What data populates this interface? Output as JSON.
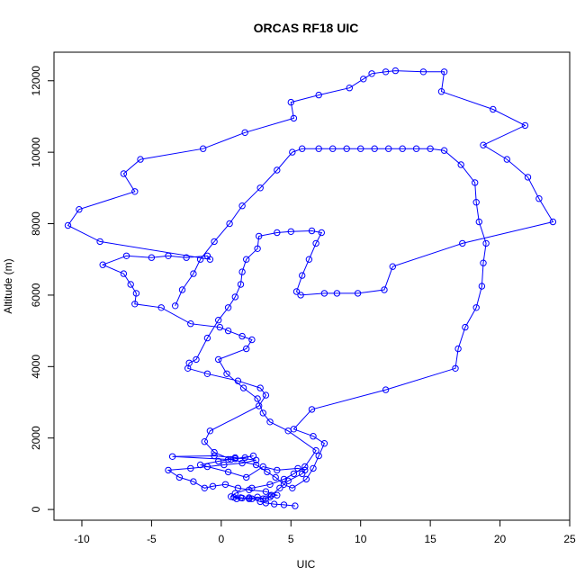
{
  "chart_data": {
    "type": "line",
    "title": "ORCAS RF18 UIC",
    "xlabel": "UIC",
    "ylabel": "Altitude (m)",
    "xlim": [
      -12,
      25
    ],
    "ylim": [
      -300,
      12800
    ],
    "xticks": [
      -10,
      -5,
      0,
      5,
      10,
      15,
      20,
      25
    ],
    "yticks": [
      0,
      2000,
      4000,
      6000,
      8000,
      10000,
      12000
    ],
    "grid": false,
    "legend": "none",
    "line_style": "line with open circle markers",
    "color": "#0000ff",
    "series": [
      {
        "points": [
          [
            5.3,
            100
          ],
          [
            4.5,
            130
          ],
          [
            3.8,
            150
          ],
          [
            3.2,
            180
          ],
          [
            2.8,
            220
          ],
          [
            2.2,
            300
          ],
          [
            1.5,
            320
          ],
          [
            0.9,
            340
          ],
          [
            1.1,
            300
          ],
          [
            2.0,
            330
          ],
          [
            3.0,
            300
          ],
          [
            3.5,
            350
          ],
          [
            4.0,
            400
          ],
          [
            3.2,
            500
          ],
          [
            2.0,
            550
          ],
          [
            1.2,
            600
          ],
          [
            0.3,
            700
          ],
          [
            -0.6,
            650
          ],
          [
            -1.2,
            600
          ],
          [
            -2.0,
            780
          ],
          [
            -3.0,
            900
          ],
          [
            -3.8,
            1100
          ],
          [
            -2.2,
            1150
          ],
          [
            -1.0,
            1200
          ],
          [
            0.2,
            1250
          ],
          [
            1.5,
            1300
          ],
          [
            2.5,
            1380
          ],
          [
            1.0,
            1450
          ],
          [
            -0.5,
            1500
          ],
          [
            -3.5,
            1480
          ],
          [
            0.5,
            1400
          ],
          [
            1.7,
            1450
          ],
          [
            2.3,
            1500
          ],
          [
            1.0,
            1420
          ],
          [
            -0.2,
            1350
          ],
          [
            -1.5,
            1250
          ],
          [
            0.5,
            1050
          ],
          [
            1.8,
            900
          ],
          [
            3.0,
            1200
          ],
          [
            4.0,
            1100
          ],
          [
            5.5,
            1150
          ],
          [
            6.0,
            1100
          ],
          [
            5.8,
            1000
          ],
          [
            4.8,
            800
          ],
          [
            4.2,
            600
          ],
          [
            3.6,
            400
          ],
          [
            3.2,
            300
          ],
          [
            2.6,
            350
          ],
          [
            2.0,
            300
          ],
          [
            1.4,
            330
          ],
          [
            0.7,
            360
          ],
          [
            1.0,
            450
          ],
          [
            2.2,
            600
          ],
          [
            3.5,
            700
          ],
          [
            4.5,
            850
          ],
          [
            5.2,
            1000
          ],
          [
            6.0,
            1200
          ],
          [
            6.8,
            1650
          ],
          [
            4.8,
            2200
          ],
          [
            3.5,
            2450
          ],
          [
            3.0,
            2700
          ],
          [
            2.6,
            3100
          ],
          [
            1.6,
            3400
          ],
          [
            0.4,
            3800
          ],
          [
            -0.2,
            4200
          ],
          [
            1.8,
            4500
          ],
          [
            2.2,
            4750
          ],
          [
            1.5,
            4850
          ],
          [
            0.5,
            5000
          ],
          [
            -0.1,
            5100
          ],
          [
            -2.2,
            5200
          ],
          [
            -4.3,
            5650
          ],
          [
            -6.2,
            5750
          ],
          [
            -6.1,
            6050
          ],
          [
            -6.5,
            6300
          ],
          [
            -7.0,
            6600
          ],
          [
            -8.5,
            6850
          ],
          [
            -6.8,
            7100
          ],
          [
            -5.0,
            7050
          ],
          [
            -3.8,
            7100
          ],
          [
            -2.5,
            7050
          ],
          [
            -1.0,
            7100
          ],
          [
            -0.8,
            7000
          ],
          [
            -8.7,
            7500
          ],
          [
            -11.0,
            7950
          ],
          [
            -10.2,
            8400
          ],
          [
            -6.2,
            8900
          ],
          [
            -7.0,
            9400
          ],
          [
            -5.8,
            9800
          ],
          [
            -1.3,
            10100
          ],
          [
            1.7,
            10550
          ],
          [
            5.2,
            10950
          ],
          [
            5.0,
            11400
          ],
          [
            7.0,
            11600
          ],
          [
            9.2,
            11800
          ],
          [
            10.2,
            12050
          ],
          [
            10.8,
            12200
          ],
          [
            11.8,
            12250
          ],
          [
            12.5,
            12280
          ],
          [
            14.5,
            12250
          ],
          [
            16.0,
            12250
          ],
          [
            15.8,
            11700
          ],
          [
            19.5,
            11200
          ],
          [
            21.8,
            10750
          ],
          [
            18.8,
            10200
          ],
          [
            20.5,
            9800
          ],
          [
            22.0,
            9300
          ],
          [
            22.8,
            8700
          ],
          [
            23.8,
            8050
          ],
          [
            17.3,
            7450
          ],
          [
            12.3,
            6800
          ],
          [
            11.7,
            6150
          ],
          [
            9.8,
            6050
          ],
          [
            8.3,
            6050
          ],
          [
            7.4,
            6050
          ],
          [
            5.7,
            6000
          ],
          [
            5.4,
            6100
          ],
          [
            5.8,
            6550
          ],
          [
            6.3,
            7000
          ],
          [
            6.8,
            7450
          ],
          [
            7.2,
            7750
          ],
          [
            6.5,
            7800
          ],
          [
            5.0,
            7780
          ],
          [
            4.0,
            7750
          ],
          [
            2.7,
            7650
          ],
          [
            2.6,
            7300
          ],
          [
            1.8,
            7000
          ],
          [
            1.5,
            6650
          ],
          [
            1.4,
            6300
          ],
          [
            1.0,
            5950
          ],
          [
            0.5,
            5650
          ],
          [
            -0.2,
            5300
          ],
          [
            -1.0,
            4800
          ],
          [
            -1.8,
            4200
          ],
          [
            -2.3,
            4100
          ],
          [
            -2.4,
            3950
          ],
          [
            -1.0,
            3800
          ],
          [
            1.2,
            3600
          ],
          [
            2.8,
            3400
          ],
          [
            3.2,
            3200
          ],
          [
            2.7,
            2900
          ],
          [
            -0.8,
            2200
          ],
          [
            -1.2,
            1900
          ],
          [
            -0.5,
            1600
          ],
          [
            0.7,
            1400
          ],
          [
            2.5,
            1250
          ],
          [
            3.3,
            1050
          ],
          [
            3.9,
            900
          ],
          [
            4.5,
            700
          ],
          [
            5.1,
            600
          ],
          [
            6.1,
            850
          ],
          [
            6.6,
            1150
          ],
          [
            7.0,
            1500
          ],
          [
            7.4,
            1850
          ],
          [
            6.6,
            2050
          ],
          [
            5.2,
            2250
          ],
          [
            6.5,
            2800
          ],
          [
            11.8,
            3350
          ],
          [
            16.8,
            3950
          ],
          [
            17.0,
            4500
          ],
          [
            17.5,
            5100
          ],
          [
            18.3,
            5650
          ],
          [
            18.7,
            6250
          ],
          [
            18.8,
            6900
          ],
          [
            19.0,
            7450
          ],
          [
            18.5,
            8050
          ],
          [
            18.3,
            8600
          ],
          [
            18.2,
            9150
          ],
          [
            17.2,
            9650
          ],
          [
            16.0,
            10050
          ],
          [
            15.0,
            10100
          ],
          [
            14.0,
            10100
          ],
          [
            13.0,
            10100
          ],
          [
            12.0,
            10100
          ],
          [
            11.0,
            10100
          ],
          [
            10.0,
            10100
          ],
          [
            9.0,
            10100
          ],
          [
            8.0,
            10100
          ],
          [
            7.0,
            10100
          ],
          [
            5.8,
            10100
          ],
          [
            5.1,
            10000
          ],
          [
            4.0,
            9500
          ],
          [
            2.8,
            9000
          ],
          [
            1.5,
            8500
          ],
          [
            0.6,
            8000
          ],
          [
            -0.5,
            7500
          ],
          [
            -1.5,
            7000
          ],
          [
            -2.0,
            6600
          ],
          [
            -2.8,
            6150
          ],
          [
            -3.3,
            5700
          ]
        ]
      }
    ]
  }
}
